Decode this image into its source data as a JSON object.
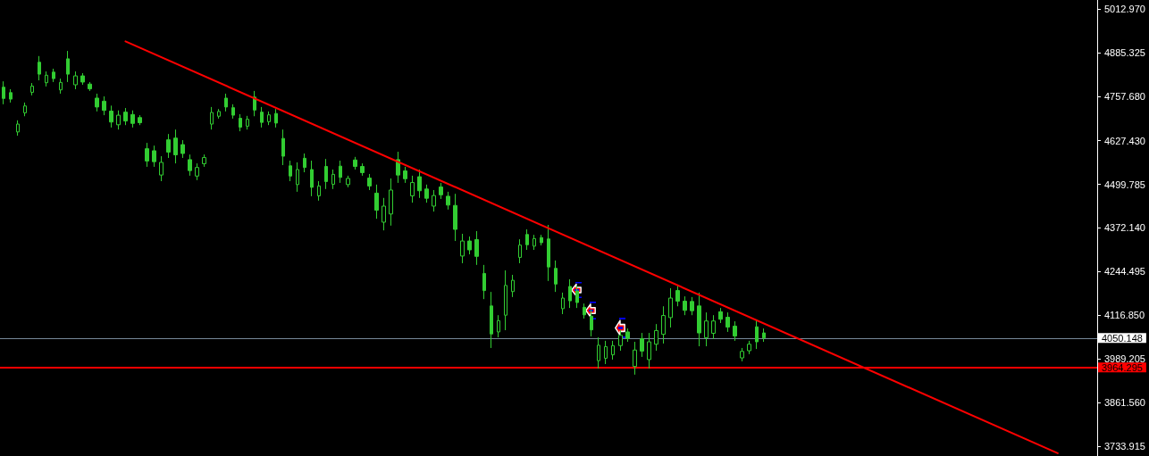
{
  "chart_data": {
    "type": "candlestick",
    "color": "#32cd32",
    "categories": [
      null,
      null,
      null,
      null,
      null,
      null,
      null,
      null,
      null,
      null,
      null,
      null,
      null,
      null,
      null,
      null,
      null,
      null,
      null,
      null,
      null,
      null,
      null,
      null,
      null,
      null,
      null,
      null,
      null,
      null,
      null,
      null,
      null,
      null,
      null,
      null,
      null,
      null,
      null,
      null,
      null,
      null,
      null,
      null,
      null,
      null,
      null,
      null,
      null,
      null,
      null,
      null,
      null,
      null,
      null,
      null,
      null,
      null,
      null,
      null,
      null,
      null,
      null,
      null,
      null,
      null,
      null,
      null,
      null,
      null,
      null,
      null,
      null,
      null,
      null,
      null,
      null,
      null,
      null,
      null,
      null,
      null,
      null,
      null,
      null,
      null,
      null,
      null,
      null,
      null,
      null,
      null,
      null,
      null,
      null,
      null,
      null,
      null,
      null,
      null,
      null,
      null,
      null,
      null,
      null,
      null,
      null,
      null,
      null,
      null,
      null,
      null,
      null,
      null,
      null,
      null,
      null,
      null,
      null,
      null,
      null,
      null,
      null,
      null,
      null,
      null,
      null,
      null,
      null,
      null,
      null,
      null,
      null,
      null,
      null,
      null,
      null,
      null,
      null,
      null,
      null,
      null,
      null,
      null,
      null,
      null,
      null,
      null,
      null,
      null,
      null,
      null,
      null
    ],
    "ohlc": [
      [
        4784,
        4801,
        4734,
        4751
      ],
      [
        4768,
        4778,
        4739,
        4749
      ],
      [
        4653,
        4687,
        4642,
        4676
      ],
      [
        4709,
        4739,
        4699,
        4729
      ],
      [
        4769,
        4796,
        4760,
        4787
      ],
      [
        4857,
        4875,
        4804,
        4822
      ],
      [
        4797,
        4830,
        4786,
        4819
      ],
      [
        4828,
        4838,
        4799,
        4809
      ],
      [
        4776,
        4809,
        4765,
        4798
      ],
      [
        4867,
        4890,
        4799,
        4822
      ],
      [
        4791,
        4830,
        4778,
        4817
      ],
      [
        4817,
        4825,
        4791,
        4799
      ],
      [
        4793,
        4799,
        4773,
        4779
      ],
      [
        4752,
        4765,
        4713,
        4726
      ],
      [
        4743,
        4757,
        4702,
        4716
      ],
      [
        4714,
        4730,
        4666,
        4682
      ],
      [
        4674,
        4716,
        4660,
        4702
      ],
      [
        4711,
        4723,
        4673,
        4685
      ],
      [
        4704,
        4716,
        4666,
        4678
      ],
      [
        4695,
        4702,
        4673,
        4680
      ],
      [
        4604,
        4621,
        4551,
        4568
      ],
      [
        4598,
        4613,
        4551,
        4566
      ],
      [
        4527,
        4582,
        4509,
        4564
      ],
      [
        4630,
        4647,
        4577,
        4594
      ],
      [
        4635,
        4660,
        4561,
        4586
      ],
      [
        4616,
        4629,
        4577,
        4590
      ],
      [
        4572,
        4587,
        4525,
        4540
      ],
      [
        4524,
        4561,
        4512,
        4549
      ],
      [
        4560,
        4587,
        4551,
        4578
      ],
      [
        4676,
        4726,
        4660,
        4710
      ],
      [
        4699,
        4720,
        4692,
        4713
      ],
      [
        4752,
        4765,
        4713,
        4726
      ],
      [
        4724,
        4734,
        4692,
        4702
      ],
      [
        4693,
        4705,
        4655,
        4667
      ],
      [
        4670,
        4700,
        4660,
        4690
      ],
      [
        4755,
        4773,
        4699,
        4717
      ],
      [
        4711,
        4726,
        4666,
        4681
      ],
      [
        4683,
        4713,
        4673,
        4703
      ],
      [
        4707,
        4720,
        4666,
        4679
      ],
      [
        4634,
        4660,
        4556,
        4582
      ],
      [
        4554,
        4569,
        4509,
        4524
      ],
      [
        4499,
        4564,
        4478,
        4543
      ],
      [
        4576,
        4590,
        4535,
        4549
      ],
      [
        4543,
        4569,
        4465,
        4491
      ],
      [
        4466,
        4509,
        4452,
        4495
      ],
      [
        4552,
        4574,
        4486,
        4508
      ],
      [
        4500,
        4543,
        4486,
        4529
      ],
      [
        4553,
        4569,
        4504,
        4520
      ],
      [
        4499,
        4525,
        4491,
        4517
      ],
      [
        4571,
        4580,
        4543,
        4552
      ],
      [
        4552,
        4561,
        4525,
        4534
      ],
      [
        4518,
        4530,
        4483,
        4495
      ],
      [
        4474,
        4499,
        4399,
        4424
      ],
      [
        4389,
        4460,
        4365,
        4436
      ],
      [
        4413,
        4517,
        4379,
        4483
      ],
      [
        4572,
        4595,
        4504,
        4527
      ],
      [
        4539,
        4551,
        4504,
        4516
      ],
      [
        4466,
        4525,
        4446,
        4505
      ],
      [
        4522,
        4543,
        4460,
        4481
      ],
      [
        4486,
        4499,
        4446,
        4459
      ],
      [
        4436,
        4483,
        4420,
        4467
      ],
      [
        4492,
        4504,
        4457,
        4469
      ],
      [
        4465,
        4478,
        4426,
        4439
      ],
      [
        4438,
        4472,
        4334,
        4368
      ],
      [
        4290,
        4355,
        4269,
        4334
      ],
      [
        4334,
        4347,
        4295,
        4308
      ],
      [
        4338,
        4363,
        4264,
        4289
      ],
      [
        4239,
        4264,
        4164,
        4189
      ],
      [
        4144,
        4185,
        4021,
        4062
      ],
      [
        4068,
        4117,
        4052,
        4101
      ],
      [
        4117,
        4248,
        4073,
        4204
      ],
      [
        4186,
        4235,
        4170,
        4219
      ],
      [
        4286,
        4339,
        4269,
        4322
      ],
      [
        4353,
        4368,
        4308,
        4323
      ],
      [
        4319,
        4352,
        4308,
        4341
      ],
      [
        4344,
        4352,
        4321,
        4329
      ],
      [
        4340,
        4381,
        4217,
        4258
      ],
      [
        4254,
        4277,
        4185,
        4208
      ],
      [
        4136,
        4183,
        4120,
        4167
      ],
      [
        4201,
        4222,
        4138,
        4159
      ],
      [
        4188,
        4204,
        4138,
        4154
      ],
      [
        4140,
        4151,
        4107,
        4118
      ],
      [
        4114,
        4133,
        4055,
        4074
      ],
      [
        3984,
        4052,
        3961,
        4029
      ],
      [
        3991,
        4042,
        3974,
        4025
      ],
      [
        4001,
        4042,
        3987,
        4028
      ],
      [
        4028,
        4073,
        4013,
        4058
      ],
      [
        4068,
        4078,
        4039,
        4049
      ],
      [
        3967,
        4039,
        3943,
        4015
      ],
      [
        4048,
        4065,
        3995,
        4012
      ],
      [
        3987,
        4065,
        3961,
        4039
      ],
      [
        4032,
        4091,
        4013,
        4072
      ],
      [
        4061,
        4143,
        4034,
        4116
      ],
      [
        4110,
        4196,
        4081,
        4167
      ],
      [
        4189,
        4204,
        4143,
        4158
      ],
      [
        4158,
        4172,
        4117,
        4131
      ],
      [
        4157,
        4170,
        4117,
        4130
      ],
      [
        4144,
        4183,
        4026,
        4065
      ],
      [
        4051,
        4125,
        4026,
        4100
      ],
      [
        4064,
        4117,
        4047,
        4100
      ],
      [
        4127,
        4138,
        4094,
        4105
      ],
      [
        4111,
        4125,
        4068,
        4082
      ],
      [
        4085,
        4099,
        4042,
        4056
      ],
      [
        3992,
        4021,
        3982,
        4011
      ],
      [
        4013,
        4042,
        4003,
        4032
      ],
      [
        4083,
        4104,
        4018,
        4039
      ],
      [
        4065,
        4078,
        4039,
        4050
      ],
      null,
      null,
      null,
      null,
      null,
      null,
      null,
      null,
      null,
      null,
      null,
      null,
      null,
      null,
      null,
      null,
      null,
      null,
      null,
      null,
      null,
      null,
      null,
      null,
      null,
      null,
      null,
      null,
      null,
      null,
      null,
      null,
      null,
      null,
      null,
      null,
      null,
      null,
      null,
      null,
      null,
      null,
      null,
      null,
      null,
      null
    ],
    "series": [
      {
        "type": "line",
        "color": "#ff0000",
        "values": [
          null,
          null,
          null,
          null,
          null,
          null,
          null,
          null,
          null,
          null,
          null,
          null,
          null,
          null,
          null,
          null,
          null,
          4918,
          null,
          null,
          null,
          null,
          null,
          null,
          null,
          null,
          null,
          null,
          null,
          null,
          null,
          null,
          null,
          null,
          null,
          null,
          null,
          null,
          null,
          null,
          null,
          null,
          null,
          null,
          null,
          null,
          null,
          null,
          null,
          null,
          null,
          null,
          null,
          null,
          null,
          null,
          null,
          null,
          null,
          null,
          null,
          null,
          null,
          null,
          null,
          null,
          null,
          null,
          null,
          null,
          null,
          null,
          null,
          null,
          null,
          null,
          null,
          null,
          null,
          null,
          null,
          null,
          null,
          null,
          null,
          null,
          null,
          null,
          null,
          null,
          null,
          null,
          null,
          null,
          null,
          null,
          null,
          null,
          null,
          null,
          null,
          null,
          null,
          null,
          null,
          null,
          null,
          null,
          null,
          null,
          null,
          null,
          null,
          null,
          null,
          null,
          null,
          null,
          null,
          null,
          null,
          null,
          null,
          null,
          null,
          null,
          null,
          null,
          null,
          null,
          null,
          null,
          null,
          null,
          null,
          null,
          null,
          null,
          null,
          null,
          null,
          null,
          null,
          null,
          null,
          null,
          null,
          3713,
          null,
          null,
          null,
          null,
          null
        ]
      }
    ],
    "ylim": [
      3705,
      5039
    ],
    "yticks": [
      {
        "value": 5012.97,
        "label": "5012.970"
      },
      4885.325,
      {
        "value": 4757.68,
        "label": "4757.680"
      },
      {
        "value": 4627.43,
        "label": "4627.430"
      },
      4499.785,
      {
        "value": 4372.14,
        "label": "4372.140"
      },
      4244.495,
      {
        "value": 4116.85,
        "label": "4116.850"
      },
      3989.205,
      {
        "value": 3861.56,
        "label": "3861.560"
      },
      3733.915
    ],
    "ref_lines": [
      {
        "axis": "y",
        "value": 4050.148,
        "label": "4050.148",
        "color": "#778899"
      },
      {
        "axis": "y",
        "value": 3964.295,
        "label": "3964.295",
        "color": "#ff0000"
      }
    ],
    "tick_labels": "y"
  }
}
